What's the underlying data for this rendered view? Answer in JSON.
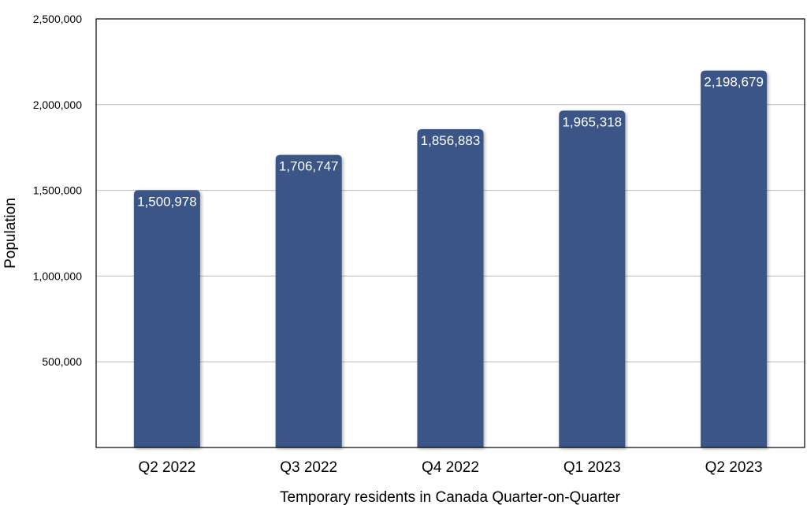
{
  "chart_data": {
    "type": "bar",
    "categories": [
      "Q2 2022",
      "Q3 2022",
      "Q4 2022",
      "Q1 2023",
      "Q2 2023"
    ],
    "values": [
      1500978,
      1706747,
      1856883,
      1965318,
      2198679
    ],
    "value_labels": [
      "1,500,978",
      "1,706,747",
      "1,856,883",
      "1,965,318",
      "2,198,679"
    ],
    "title": "",
    "xlabel": "Temporary residents in Canada Quarter-on-Quarter",
    "ylabel": "Population",
    "ylim": [
      0,
      2500000
    ],
    "yticks": [
      500000,
      1000000,
      1500000,
      2000000,
      2500000
    ],
    "ytick_labels": [
      "500,000",
      "1,000,000",
      "1,500,000",
      "2,000,000",
      "2,500,000"
    ],
    "grid": true,
    "legend": "none",
    "bar_color": "#3a5587",
    "data_label_color": "#ffffff",
    "grid_color": "#b8b8b8"
  }
}
